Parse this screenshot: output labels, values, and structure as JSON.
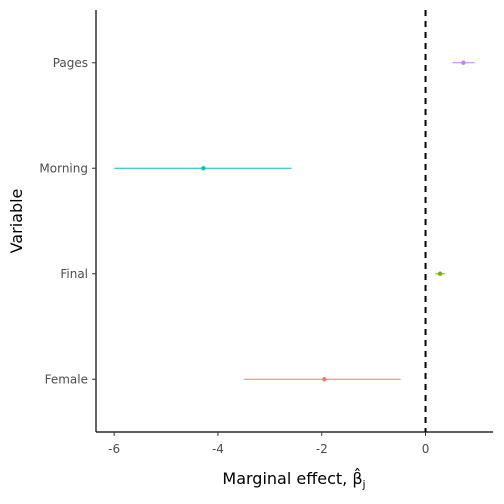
{
  "chart_data": {
    "type": "coefficient-plot",
    "xlabel": "Marginal effect, ",
    "xlabel_symbol": "β̂",
    "xlabel_subscript": "j",
    "ylabel": "Variable",
    "xlim": [
      -6.35,
      1.3
    ],
    "x_ticks": [
      -6,
      -4,
      -2,
      0
    ],
    "x_tick_labels": [
      "-6",
      "-4",
      "-2",
      "0"
    ],
    "reference_line": 0,
    "categories": [
      "Female",
      "Final",
      "Morning",
      "Pages"
    ],
    "estimates": [
      -1.95,
      0.28,
      -4.28,
      0.73
    ],
    "ci_low": [
      -3.5,
      0.19,
      -6.0,
      0.52
    ],
    "ci_high": [
      -0.48,
      0.37,
      -2.58,
      0.95
    ],
    "colors": [
      "#F8766D",
      "#7CAE00",
      "#00BFC4",
      "#C77CFF"
    ]
  }
}
